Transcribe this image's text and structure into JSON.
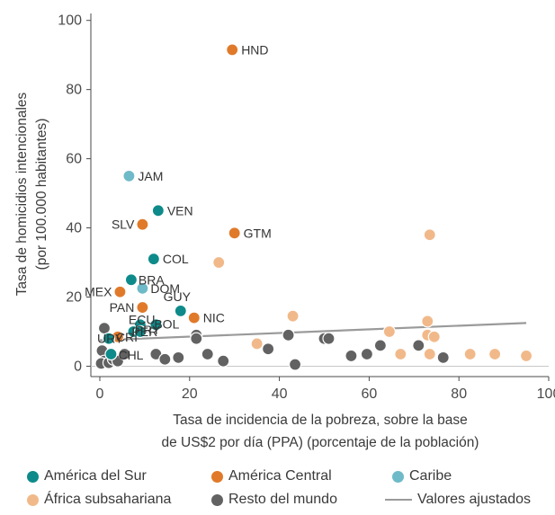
{
  "chart_data": {
    "type": "scatter",
    "xlabel": [
      "Tasa de incidencia de la pobreza, sobre la base",
      "de US$2 por día (PPA) (porcentaje de la población)"
    ],
    "ylabel": [
      "Tasa de homicidios intencionales",
      "(por 100.000 habitantes)"
    ],
    "xlim": [
      -2,
      100
    ],
    "ylim": [
      -3,
      102
    ],
    "x_ticks": [
      0,
      20,
      40,
      60,
      80,
      100
    ],
    "y_ticks": [
      0,
      20,
      40,
      60,
      80,
      100
    ],
    "grid": false,
    "legend_position": "bottom",
    "colors": {
      "america_del_sur": "#0e8a8a",
      "america_central": "#e07a2a",
      "caribe": "#6fbac8",
      "africa_subsahariana": "#f1b98a",
      "resto_del_mundo": "#626262",
      "valores_ajustados": "#9a9a9a"
    },
    "series": [
      {
        "name": "América del Sur",
        "key": "america_del_sur",
        "points": [
          {
            "label": "VEN",
            "x": 13,
            "y": 45
          },
          {
            "label": "COL",
            "x": 12,
            "y": 31
          },
          {
            "label": "BRA",
            "x": 7,
            "y": 25
          },
          {
            "label": "GUY",
            "x": 18,
            "y": 16
          },
          {
            "label": "ECU",
            "x": 9,
            "y": 12
          },
          {
            "label": "BOL",
            "x": 12.5,
            "y": 12
          },
          {
            "label": "PER",
            "x": 7.5,
            "y": 10
          },
          {
            "label": "URY",
            "x": 2,
            "y": 8
          },
          {
            "label": "PRY",
            "x": 9,
            "y": 10
          },
          {
            "label": "CHL",
            "x": 2.5,
            "y": 3.5
          }
        ]
      },
      {
        "name": "América Central",
        "key": "america_central",
        "points": [
          {
            "label": "HND",
            "x": 29.5,
            "y": 91.5
          },
          {
            "label": "SLV",
            "x": 9.5,
            "y": 41
          },
          {
            "label": "GTM",
            "x": 30,
            "y": 38.5
          },
          {
            "label": "MEX",
            "x": 4.5,
            "y": 21.5
          },
          {
            "label": "PAN",
            "x": 9.5,
            "y": 17
          },
          {
            "label": "NIC",
            "x": 21,
            "y": 14
          },
          {
            "label": "CRI",
            "x": 4,
            "y": 8.5
          }
        ]
      },
      {
        "name": "Caribe",
        "key": "caribe",
        "points": [
          {
            "label": "JAM",
            "x": 6.5,
            "y": 55
          },
          {
            "label": "DOM",
            "x": 9.5,
            "y": 22.5
          }
        ]
      },
      {
        "name": "África subsahariana",
        "key": "africa_subsahariana",
        "points": [
          {
            "x": 73.5,
            "y": 38
          },
          {
            "x": 26.5,
            "y": 30
          },
          {
            "x": 43,
            "y": 14.5
          },
          {
            "x": 73,
            "y": 13
          },
          {
            "x": 64.5,
            "y": 10
          },
          {
            "x": 73,
            "y": 9
          },
          {
            "x": 74.5,
            "y": 8.5
          },
          {
            "x": 35,
            "y": 6.5
          },
          {
            "x": 67,
            "y": 3.5
          },
          {
            "x": 73.5,
            "y": 3.5
          },
          {
            "x": 82.5,
            "y": 3.5
          },
          {
            "x": 88,
            "y": 3.5
          },
          {
            "x": 95,
            "y": 3
          }
        ]
      },
      {
        "name": "Resto del mundo",
        "key": "resto_del_mundo",
        "points": [
          {
            "x": 1,
            "y": 11
          },
          {
            "x": 0.5,
            "y": 4.5
          },
          {
            "x": 1,
            "y": 1.5
          },
          {
            "x": 0.3,
            "y": 0.8
          },
          {
            "x": 2,
            "y": 1
          },
          {
            "x": 3,
            "y": 2
          },
          {
            "x": 4,
            "y": 1.5
          },
          {
            "x": 5.5,
            "y": 3.5
          },
          {
            "x": 12.5,
            "y": 3.5
          },
          {
            "x": 14.5,
            "y": 2
          },
          {
            "x": 17.5,
            "y": 2.5
          },
          {
            "x": 21.5,
            "y": 9
          },
          {
            "x": 21.5,
            "y": 8
          },
          {
            "x": 24,
            "y": 3.5
          },
          {
            "x": 27.5,
            "y": 1.5
          },
          {
            "x": 37.5,
            "y": 5
          },
          {
            "x": 42,
            "y": 9
          },
          {
            "x": 43.5,
            "y": 0.5
          },
          {
            "x": 50,
            "y": 8
          },
          {
            "x": 51,
            "y": 8
          },
          {
            "x": 56,
            "y": 3
          },
          {
            "x": 59.5,
            "y": 3.5
          },
          {
            "x": 62.5,
            "y": 6
          },
          {
            "x": 71,
            "y": 6
          },
          {
            "x": 76.5,
            "y": 2.5
          }
        ]
      }
    ],
    "fit_line": {
      "name": "Valores ajustados",
      "x": [
        0,
        95
      ],
      "y": [
        7.5,
        12.5
      ]
    }
  }
}
